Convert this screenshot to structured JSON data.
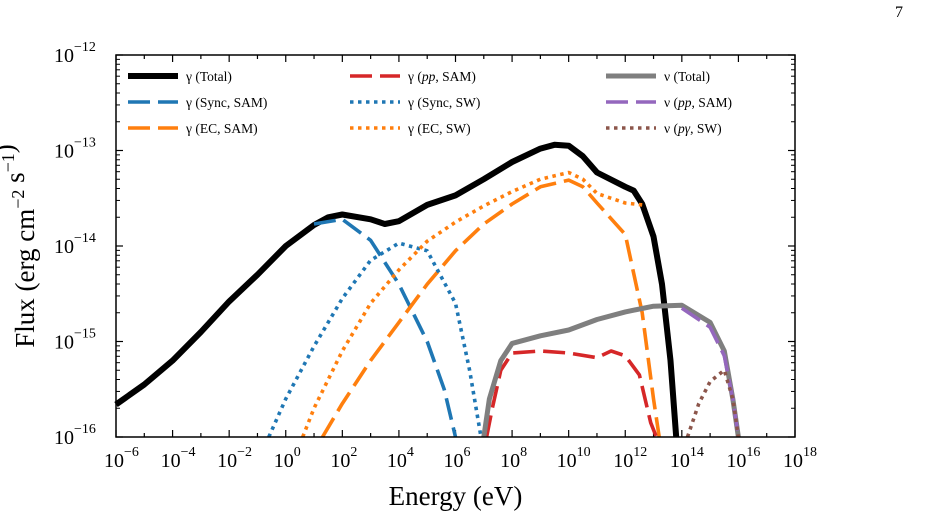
{
  "page": {
    "number": "7"
  },
  "chart_data": {
    "type": "line",
    "xlabel": "Energy (eV)",
    "ylabel": "Flux (erg cm^-2 s^-1)",
    "xscale": "log",
    "yscale": "log",
    "xlim": [
      -6,
      18
    ],
    "ylim": [
      -16,
      -12
    ],
    "xticks_exp": [
      -6,
      -4,
      -2,
      0,
      2,
      4,
      6,
      8,
      10,
      12,
      14,
      16,
      18
    ],
    "yticks_exp": [
      -16,
      -15,
      -14,
      -13,
      -12
    ],
    "legend_position": "top",
    "colors": {
      "black": "#000000",
      "blue": "#1f77b4",
      "orange": "#ff7f0e",
      "red": "#d62728",
      "gray": "#7f7f7f",
      "purple": "#9467bd",
      "brown": "#8c564b"
    },
    "series": [
      {
        "name": "γ (Total)",
        "color": "#000000",
        "style": "solid",
        "width": 6,
        "points": [
          [
            -6,
            -15.66
          ],
          [
            -5,
            -15.45
          ],
          [
            -4,
            -15.2
          ],
          [
            -3,
            -14.9
          ],
          [
            -2,
            -14.58
          ],
          [
            -1,
            -14.3
          ],
          [
            0,
            -14.0
          ],
          [
            1,
            -13.78
          ],
          [
            1.5,
            -13.7
          ],
          [
            2,
            -13.67
          ],
          [
            3,
            -13.72
          ],
          [
            3.5,
            -13.77
          ],
          [
            4,
            -13.74
          ],
          [
            5,
            -13.57
          ],
          [
            6,
            -13.47
          ],
          [
            7,
            -13.3
          ],
          [
            8,
            -13.12
          ],
          [
            9,
            -12.98
          ],
          [
            9.5,
            -12.94
          ],
          [
            10,
            -12.95
          ],
          [
            10.5,
            -13.06
          ],
          [
            11,
            -13.23
          ],
          [
            12,
            -13.38
          ],
          [
            12.3,
            -13.42
          ],
          [
            12.6,
            -13.56
          ],
          [
            13,
            -13.9
          ],
          [
            13.3,
            -14.4
          ],
          [
            13.6,
            -15.2
          ],
          [
            13.8,
            -16.0
          ]
        ]
      },
      {
        "name": "γ (Sync, SAM)",
        "color": "#1f77b4",
        "style": "dashed",
        "width": 3.6,
        "points": [
          [
            1,
            -13.77
          ],
          [
            2,
            -13.72
          ],
          [
            3,
            -13.94
          ],
          [
            4,
            -14.4
          ],
          [
            5,
            -15.0
          ],
          [
            5.6,
            -15.5
          ],
          [
            6,
            -16.0
          ]
        ]
      },
      {
        "name": "γ (EC, SAM)",
        "color": "#ff7f0e",
        "style": "dashed",
        "width": 3.6,
        "points": [
          [
            1.3,
            -16.0
          ],
          [
            2,
            -15.65
          ],
          [
            3,
            -15.2
          ],
          [
            4,
            -14.8
          ],
          [
            5,
            -14.4
          ],
          [
            6,
            -14.05
          ],
          [
            7,
            -13.77
          ],
          [
            8,
            -13.56
          ],
          [
            9,
            -13.38
          ],
          [
            10,
            -13.31
          ],
          [
            10.5,
            -13.38
          ],
          [
            11,
            -13.55
          ],
          [
            12,
            -13.88
          ],
          [
            12.6,
            -14.7
          ],
          [
            13,
            -15.6
          ],
          [
            13.2,
            -16.0
          ]
        ]
      },
      {
        "name": "γ (pp, SAM)",
        "color": "#d62728",
        "style": "dashed",
        "width": 3.6,
        "points": [
          [
            7.1,
            -16.0
          ],
          [
            7.3,
            -15.7
          ],
          [
            7.6,
            -15.3
          ],
          [
            8,
            -15.12
          ],
          [
            9,
            -15.1
          ],
          [
            10,
            -15.12
          ],
          [
            11,
            -15.17
          ],
          [
            11.5,
            -15.1
          ],
          [
            12,
            -15.15
          ],
          [
            12.5,
            -15.35
          ],
          [
            12.9,
            -15.85
          ],
          [
            13.1,
            -16.0
          ]
        ]
      },
      {
        "name": "γ (Sync, SW)",
        "color": "#1f77b4",
        "style": "dotted",
        "width": 3.6,
        "points": [
          [
            -0.6,
            -16.0
          ],
          [
            0,
            -15.6
          ],
          [
            1,
            -15.05
          ],
          [
            2,
            -14.55
          ],
          [
            3,
            -14.15
          ],
          [
            4,
            -13.97
          ],
          [
            5,
            -14.05
          ],
          [
            6,
            -14.6
          ],
          [
            6.5,
            -15.3
          ],
          [
            6.9,
            -16.0
          ]
        ]
      },
      {
        "name": "γ (EC, SW)",
        "color": "#ff7f0e",
        "style": "dotted",
        "width": 3.6,
        "points": [
          [
            0.6,
            -16.0
          ],
          [
            1,
            -15.7
          ],
          [
            2,
            -15.1
          ],
          [
            3,
            -14.6
          ],
          [
            4,
            -14.25
          ],
          [
            5,
            -13.95
          ],
          [
            6,
            -13.75
          ],
          [
            7,
            -13.58
          ],
          [
            8,
            -13.43
          ],
          [
            9,
            -13.3
          ],
          [
            10,
            -13.23
          ],
          [
            10.5,
            -13.3
          ],
          [
            11,
            -13.45
          ],
          [
            12,
            -13.55
          ],
          [
            12.6,
            -13.57
          ]
        ]
      },
      {
        "name": "ν (Total)",
        "color": "#7f7f7f",
        "style": "solid",
        "width": 5,
        "points": [
          [
            7,
            -16.0
          ],
          [
            7.2,
            -15.6
          ],
          [
            7.6,
            -15.2
          ],
          [
            8,
            -15.02
          ],
          [
            9,
            -14.94
          ],
          [
            10,
            -14.88
          ],
          [
            11,
            -14.77
          ],
          [
            12,
            -14.69
          ],
          [
            13,
            -14.63
          ],
          [
            14,
            -14.62
          ],
          [
            15,
            -14.8
          ],
          [
            15.5,
            -15.1
          ],
          [
            15.8,
            -15.6
          ],
          [
            16,
            -16.0
          ]
        ]
      },
      {
        "name": "ν (pp, SAM)",
        "color": "#9467bd",
        "style": "dashed",
        "width": 3.6,
        "points": [
          [
            14,
            -14.65
          ],
          [
            15,
            -14.85
          ],
          [
            15.5,
            -15.15
          ],
          [
            15.8,
            -15.6
          ],
          [
            16,
            -16.0
          ]
        ]
      },
      {
        "name": "ν (pγ, SW)",
        "color": "#8c564b",
        "style": "dotted",
        "width": 3.6,
        "points": [
          [
            14.2,
            -16.0
          ],
          [
            14.6,
            -15.65
          ],
          [
            15,
            -15.42
          ],
          [
            15.5,
            -15.3
          ],
          [
            15.8,
            -15.6
          ],
          [
            16,
            -16.0
          ]
        ]
      }
    ],
    "legend": [
      {
        "label": "γ (Total)",
        "color": "#000000",
        "style": "solid",
        "width": 6
      },
      {
        "label": "γ (Sync, SAM)",
        "color": "#1f77b4",
        "style": "dashed",
        "width": 3.6
      },
      {
        "label": "γ (EC, SAM)",
        "color": "#ff7f0e",
        "style": "dashed",
        "width": 3.6
      },
      {
        "label": "γ (pp, SAM)",
        "color": "#d62728",
        "style": "dashed",
        "width": 3.6
      },
      {
        "label": "γ (Sync, SW)",
        "color": "#1f77b4",
        "style": "dotted",
        "width": 3.6
      },
      {
        "label": "γ (EC, SW)",
        "color": "#ff7f0e",
        "style": "dotted",
        "width": 3.6
      },
      {
        "label": "ν (Total)",
        "color": "#7f7f7f",
        "style": "solid",
        "width": 5
      },
      {
        "label": "ν (pp, SAM)",
        "color": "#9467bd",
        "style": "dashed",
        "width": 3.6
      },
      {
        "label": "ν (pγ, SW)",
        "color": "#8c564b",
        "style": "dotted",
        "width": 3.6
      }
    ]
  }
}
